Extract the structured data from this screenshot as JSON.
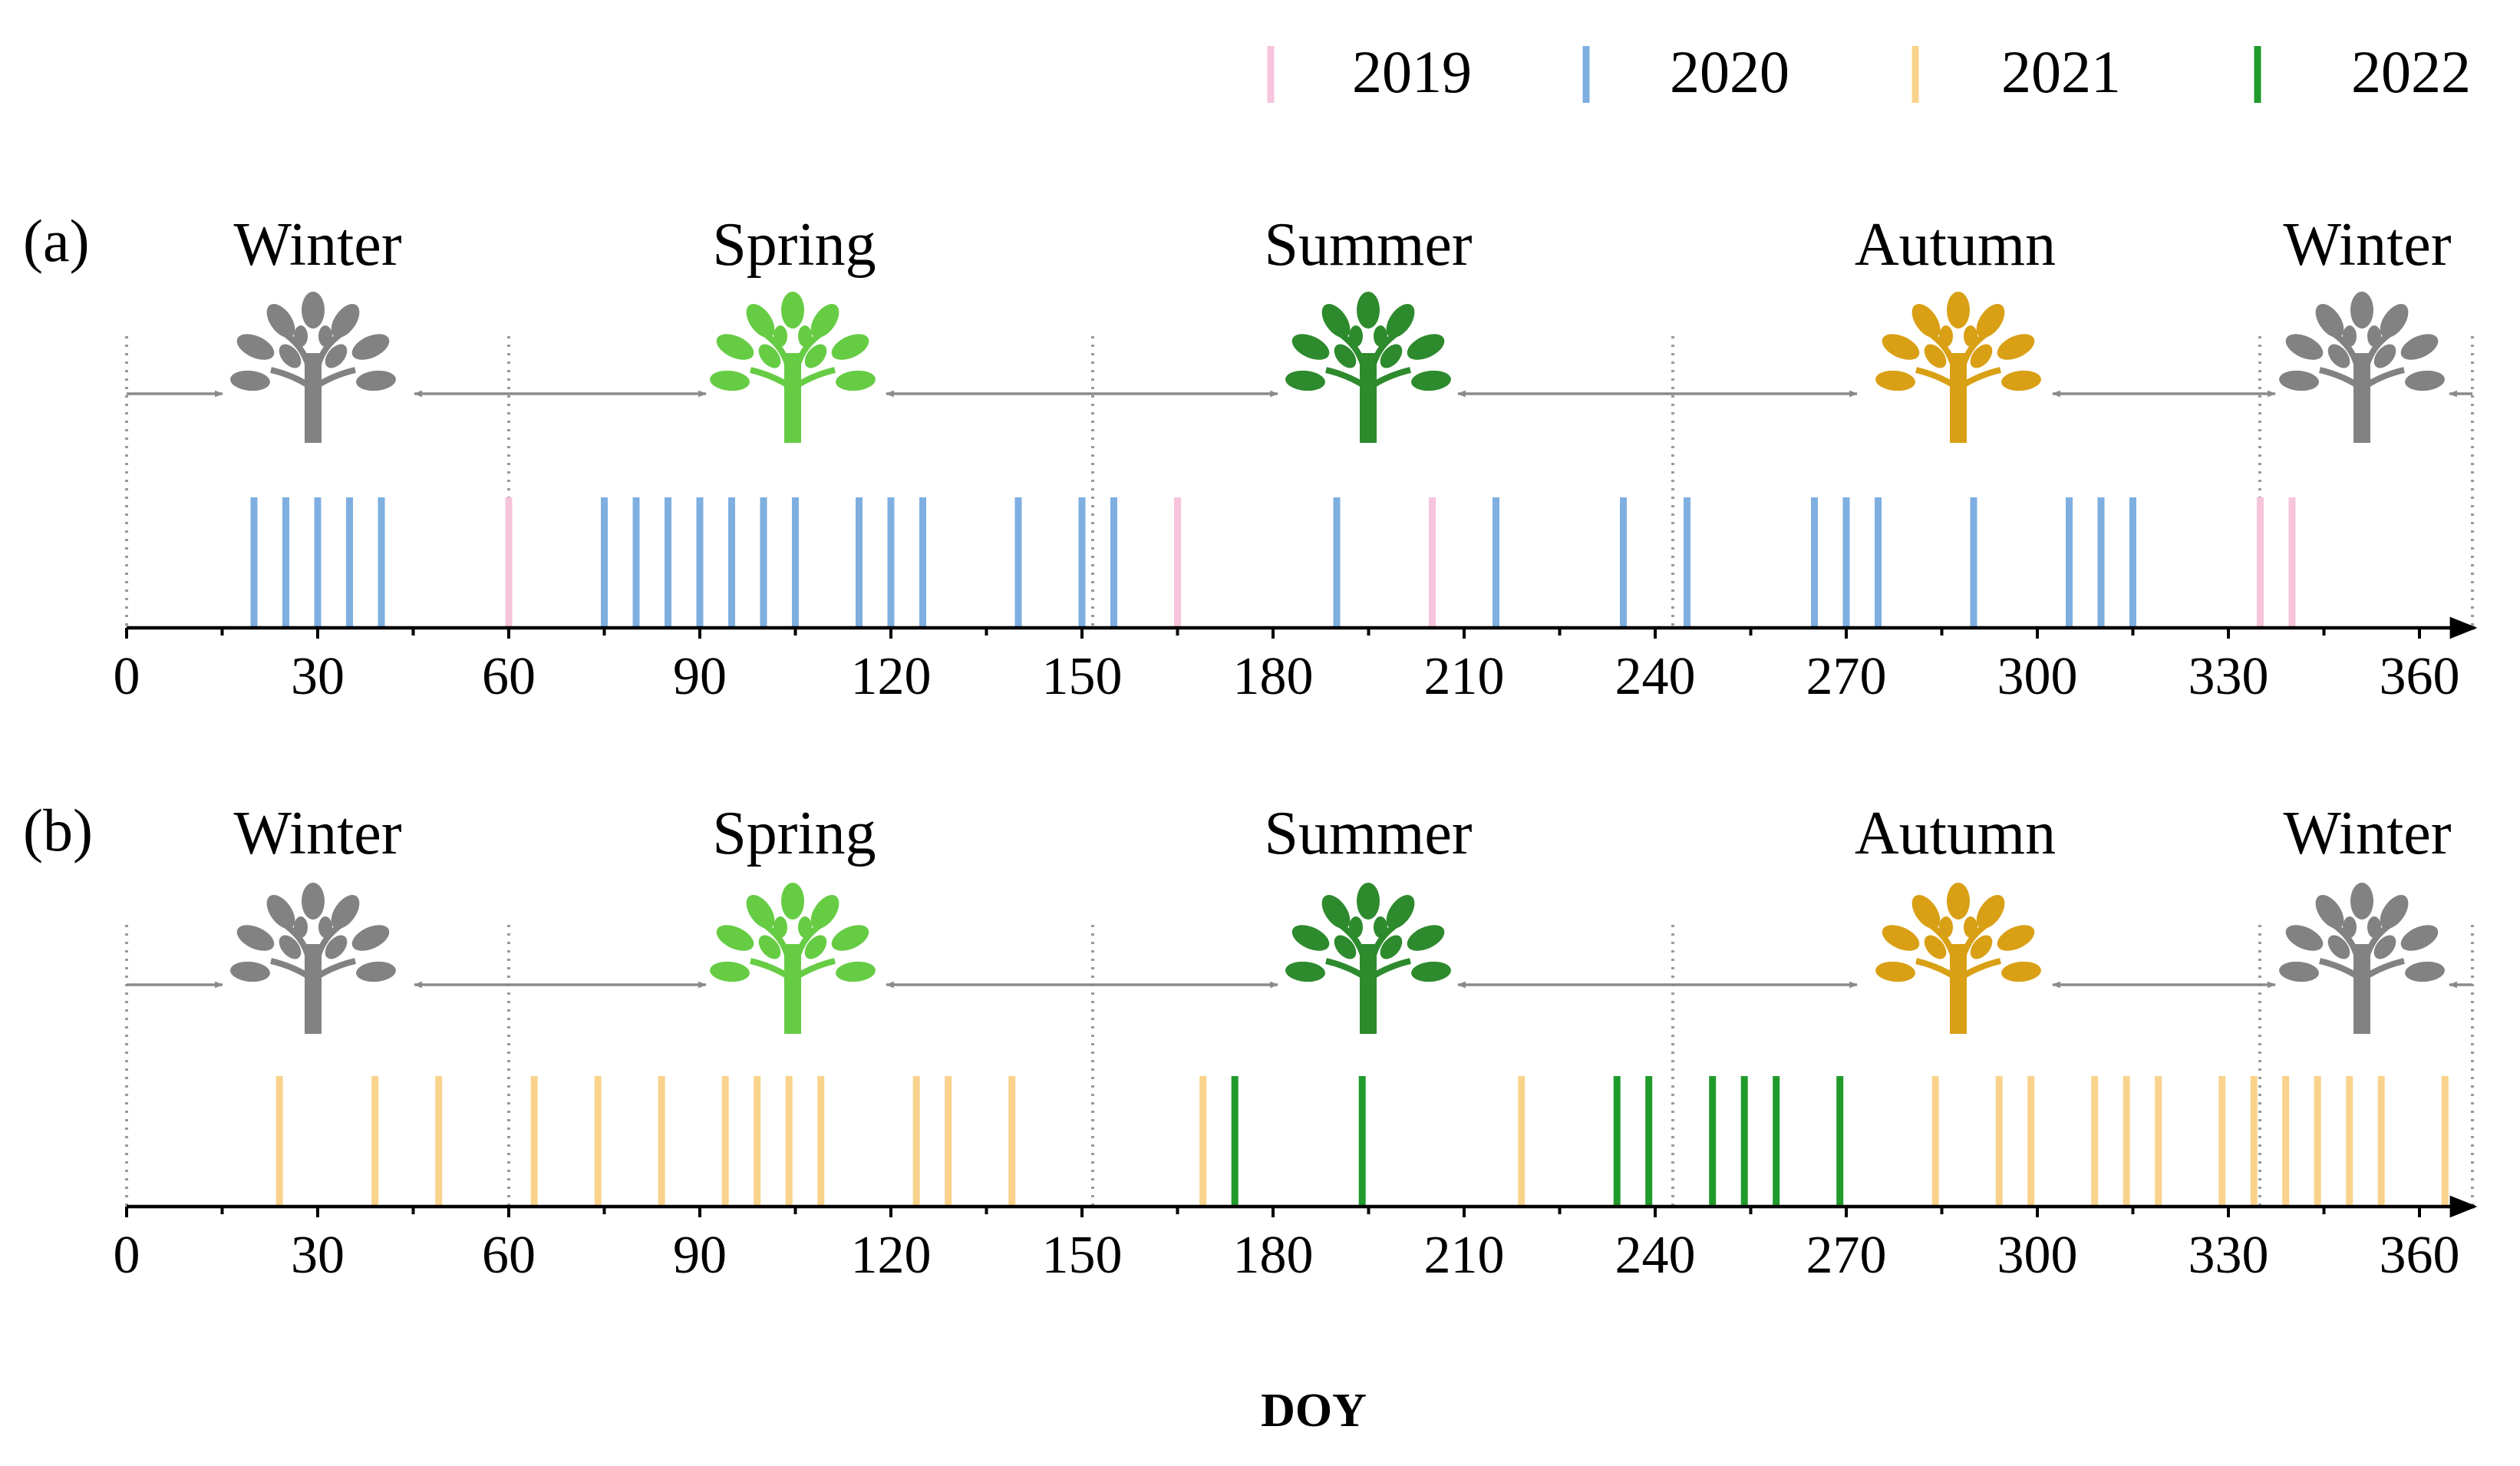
{
  "legend": [
    {
      "label": "2019",
      "color": "#f7c4dc"
    },
    {
      "label": "2020",
      "color": "#7eafe0"
    },
    {
      "label": "2021",
      "color": "#f9d38c"
    },
    {
      "label": "2022",
      "color": "#1f9a2b"
    }
  ],
  "season_colors": {
    "Winter": "#828282",
    "Spring": "#66cc44",
    "Summer": "#2d8a2d",
    "Autumn": "#d9a015"
  },
  "chart_data": [
    {
      "type": "event-timeline",
      "panel_label": "(a)",
      "seasons": [
        {
          "name": "Winter",
          "icon": "tree-gray-icon"
        },
        {
          "name": "Spring",
          "icon": "tree-light-green-icon"
        },
        {
          "name": "Summer",
          "icon": "tree-dark-green-icon"
        },
        {
          "name": "Autumn",
          "icon": "tree-orange-icon"
        },
        {
          "name": "Winter",
          "icon": "tree-gray-icon"
        }
      ],
      "season_boundaries": [
        0,
        60,
        151,
        242,
        334,
        366
      ],
      "xlim": [
        0,
        370
      ],
      "xticks": [
        0,
        30,
        60,
        90,
        120,
        150,
        180,
        210,
        240,
        270,
        300,
        330,
        360
      ],
      "xlabel": "",
      "series": [
        {
          "name": "2019",
          "values": [
            60,
            165,
            205,
            335,
            340
          ]
        },
        {
          "name": "2020",
          "values": [
            20,
            25,
            30,
            35,
            40,
            75,
            80,
            85,
            90,
            95,
            100,
            105,
            115,
            120,
            125,
            140,
            150,
            155,
            190,
            215,
            235,
            245,
            265,
            270,
            275,
            290,
            305,
            310,
            315
          ]
        }
      ]
    },
    {
      "type": "event-timeline",
      "panel_label": "(b)",
      "seasons": [
        {
          "name": "Winter",
          "icon": "tree-gray-icon"
        },
        {
          "name": "Spring",
          "icon": "tree-light-green-icon"
        },
        {
          "name": "Summer",
          "icon": "tree-dark-green-icon"
        },
        {
          "name": "Autumn",
          "icon": "tree-orange-icon"
        },
        {
          "name": "Winter",
          "icon": "tree-gray-icon"
        }
      ],
      "season_boundaries": [
        0,
        60,
        151,
        242,
        334,
        366
      ],
      "xlim": [
        0,
        370
      ],
      "xticks": [
        0,
        30,
        60,
        90,
        120,
        150,
        180,
        210,
        240,
        270,
        300,
        330,
        360
      ],
      "xlabel": "DOY",
      "series": [
        {
          "name": "2021",
          "values": [
            24,
            39,
            49,
            64,
            74,
            84,
            94,
            99,
            104,
            109,
            124,
            129,
            139,
            169,
            219,
            284,
            294,
            299,
            309,
            314,
            319,
            329,
            334,
            339,
            344,
            349,
            354,
            364
          ]
        },
        {
          "name": "2022",
          "values": [
            174,
            194,
            234,
            239,
            249,
            254,
            259,
            269
          ]
        }
      ]
    }
  ]
}
